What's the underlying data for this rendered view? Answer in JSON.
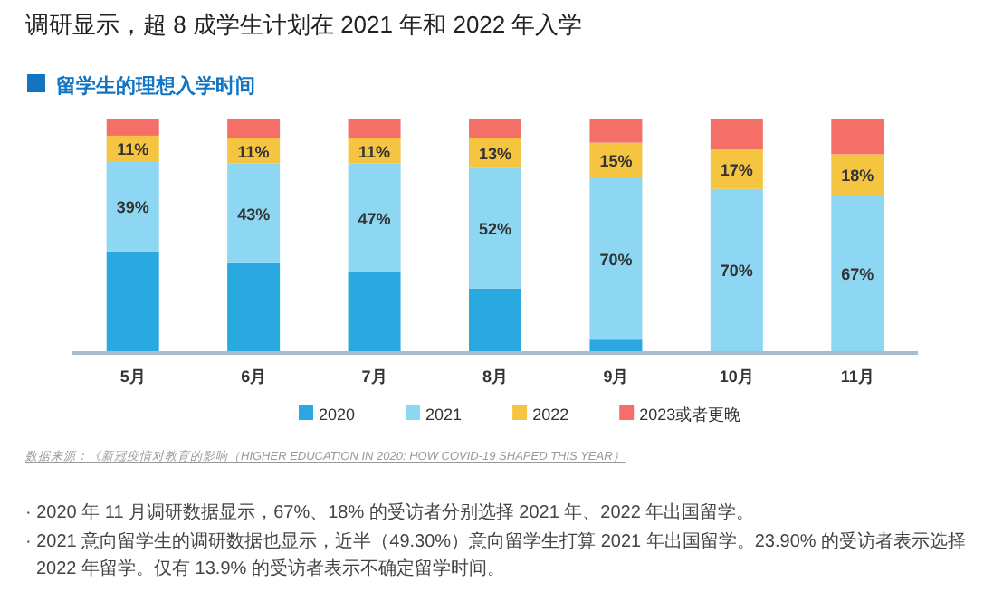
{
  "chart_data": {
    "type": "bar",
    "stacked": true,
    "title": "调研显示，超 8 成学生计划在 2021 年和 2022 年入学",
    "subtitle": "留学生的理想入学时间",
    "categories": [
      "5月",
      "6月",
      "7月",
      "8月",
      "9月",
      "10月",
      "11月"
    ],
    "series": [
      {
        "name": "2020",
        "color": "#29a9e0",
        "values": [
          43,
          38,
          34,
          27,
          5,
          0,
          0
        ]
      },
      {
        "name": "2021",
        "color": "#8dd7f3",
        "values": [
          39,
          43,
          47,
          52,
          70,
          70,
          67
        ],
        "value_labels": [
          "39%",
          "43%",
          "47%",
          "52%",
          "70%",
          "70%",
          "67%"
        ]
      },
      {
        "name": "2022",
        "color": "#f5c441",
        "values": [
          11,
          11,
          11,
          13,
          15,
          17,
          18
        ],
        "value_labels": [
          "11%",
          "11%",
          "11%",
          "13%",
          "15%",
          "17%",
          "18%"
        ]
      },
      {
        "name": "2023或者更晚",
        "color": "#f36f68",
        "values": [
          7,
          8,
          8,
          8,
          10,
          13,
          15
        ]
      }
    ],
    "legend": "bottom",
    "annotations": [
      "数据来源：《新冠疫情对教育的影响（HIGHER EDUCATION IN 2020: HOW COVID-19 SHAPED THIS YEAR）",
      "· 2020 年 11 月调研数据显示，67%、18% 的受访者分别选择 2021 年、2022 年出国留学。",
      "· 2021 意向留学生的调研数据也显示，近半（49.30%）意向留学生打算 2021 年出国留学。23.90% 的受访者表示选择 2022 年留学。仅有 13.9% 的受访者表示不确定留学时间。"
    ]
  }
}
